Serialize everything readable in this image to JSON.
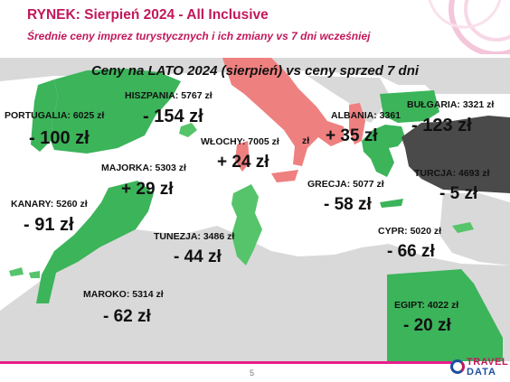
{
  "header": {
    "title": "RYNEK: Sierpień 2024 - All Inclusive",
    "subtitle": "Średnie ceny imprez turystycznych i ich zmiany vs 7 dni wcześniej"
  },
  "map": {
    "title": "Ceny na LATO 2024 (sierpień) vs ceny sprzed 7 dni"
  },
  "countries": {
    "portugalia": {
      "label": "PORTUGALIA: 6025 zł",
      "change": "- 100 zł"
    },
    "hiszpania": {
      "label": "HISZPANIA: 5767 zł",
      "change": "- 154 zł"
    },
    "wlochy": {
      "label": "WŁOCHY: 7005 zł",
      "extra": "zł",
      "change": "+ 24 zł"
    },
    "albania": {
      "label": "ALBANIA: 3361",
      "change": "+ 35 zł"
    },
    "bulgaria": {
      "label": "BUŁGARIA: 3321 zł",
      "change": "- 123 zł"
    },
    "majorka": {
      "label": "MAJORKA: 5303 zł",
      "change": "+ 29 zł"
    },
    "turcja": {
      "label": "TURCJA: 4693 zł",
      "change": "- 5 zł"
    },
    "grecja": {
      "label": "GRECJA: 5077 zł",
      "change": "- 58 zł"
    },
    "kanary": {
      "label": "KANARY: 5260 zł",
      "change": "- 91 zł"
    },
    "tunezja": {
      "label": "TUNEZJA: 3486 zł",
      "change": "- 44 zł"
    },
    "cypr": {
      "label": "CYPR: 5020 zł",
      "change": "- 66 zł"
    },
    "maroko": {
      "label": "MAROKO: 5314 zł",
      "change": "- 62 zł"
    },
    "egipt": {
      "label": "EGIPT: 4022 zł",
      "change": "- 20 zł"
    }
  },
  "colors": {
    "accent": "#c2185b",
    "decrease_dark": "#3cb45a",
    "decrease_light": "#56c46a",
    "increase": "#ef8080",
    "turcja": "#4a4a4a",
    "land": "#d9d9d9",
    "sea": "#ffffff"
  },
  "footer": {
    "page_number": "5",
    "logo_top": "TRAVEL",
    "logo_bottom": "DATA"
  }
}
